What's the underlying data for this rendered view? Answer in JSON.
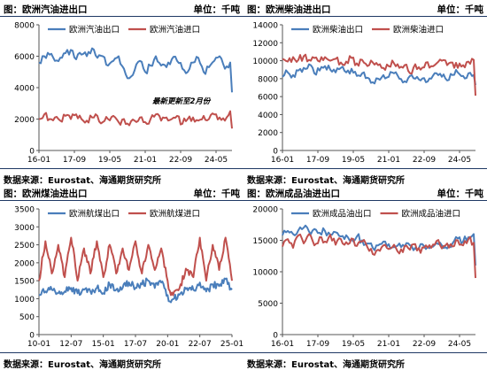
{
  "colors": {
    "blue": "#4a7ebb",
    "red": "#c0504d",
    "axis": "#555555",
    "rule": "#1f3864"
  },
  "panels": [
    {
      "title": "图：欧洲汽油进出口",
      "unit": "单位：千吨",
      "source": "数据来源：Eurostat、海通期货研究所",
      "note": "最新更新至2月份"
    },
    {
      "title": "图：欧洲柴油进出口",
      "unit": "单位：千吨",
      "source": "数据来源：Eurostat、海通期货研究所"
    },
    {
      "title": "图：欧洲煤油进出口",
      "unit": "单位：千吨",
      "source": "数据来源：Eurostat、海通期货研究所"
    },
    {
      "title": "图：欧洲成品油进出口",
      "unit": "单位：千吨",
      "source": "数据来源：Eurostat、海通期货研究所"
    }
  ],
  "chart_data": [
    {
      "type": "line",
      "legend_position": "top",
      "grid": false,
      "ylim": [
        0,
        8000
      ],
      "yticks": [
        "0",
        "2000",
        "4000",
        "6000",
        "8000"
      ],
      "x_range": [
        "2016-01",
        "2025-02"
      ],
      "xticks": [
        "16-01",
        "17-09",
        "19-05",
        "21-01",
        "22-09",
        "24-05"
      ],
      "series": [
        {
          "name": "欧洲汽油出口",
          "color": "#4a7ebb",
          "x": [
            "2016-01",
            "2016-04",
            "2016-07",
            "2016-10",
            "2017-01",
            "2017-04",
            "2017-07",
            "2017-10",
            "2018-01",
            "2018-04",
            "2018-07",
            "2018-10",
            "2019-01",
            "2019-04",
            "2019-07",
            "2019-10",
            "2020-01",
            "2020-04",
            "2020-07",
            "2020-10",
            "2021-01",
            "2021-04",
            "2021-07",
            "2021-10",
            "2022-01",
            "2022-04",
            "2022-07",
            "2022-10",
            "2023-01",
            "2023-04",
            "2023-07",
            "2023-10",
            "2024-01",
            "2024-04",
            "2024-07",
            "2024-10",
            "2025-01",
            "2025-02"
          ],
          "y": [
            5600,
            6000,
            6100,
            5700,
            5900,
            6200,
            6400,
            5800,
            6100,
            6000,
            6500,
            5900,
            6000,
            5400,
            5700,
            6000,
            5200,
            4600,
            5100,
            5700,
            5000,
            5400,
            6000,
            5400,
            5300,
            5800,
            5700,
            5200,
            5000,
            5600,
            5900,
            5000,
            5300,
            5700,
            6000,
            5200,
            5600,
            3700
          ]
        },
        {
          "name": "欧洲汽油进口",
          "color": "#c0504d",
          "x": [
            "2016-01",
            "2016-04",
            "2016-07",
            "2016-10",
            "2017-01",
            "2017-04",
            "2017-07",
            "2017-10",
            "2018-01",
            "2018-04",
            "2018-07",
            "2018-10",
            "2019-01",
            "2019-04",
            "2019-07",
            "2019-10",
            "2020-01",
            "2020-04",
            "2020-07",
            "2020-10",
            "2021-01",
            "2021-04",
            "2021-07",
            "2021-10",
            "2022-01",
            "2022-04",
            "2022-07",
            "2022-10",
            "2023-01",
            "2023-04",
            "2023-07",
            "2023-10",
            "2024-01",
            "2024-04",
            "2024-07",
            "2024-10",
            "2025-01",
            "2025-02"
          ],
          "y": [
            2000,
            2300,
            2000,
            2100,
            1900,
            2200,
            2000,
            2300,
            2000,
            1900,
            2100,
            2200,
            1800,
            2000,
            2200,
            1800,
            2000,
            1600,
            1900,
            2100,
            1800,
            2000,
            2300,
            1900,
            2100,
            2000,
            2200,
            1700,
            2000,
            2100,
            1900,
            2200,
            2000,
            2300,
            2100,
            1900,
            2500,
            1400
          ]
        }
      ]
    },
    {
      "type": "line",
      "legend_position": "top",
      "grid": false,
      "ylim": [
        0,
        14000
      ],
      "yticks": [
        "0",
        "2000",
        "4000",
        "6000",
        "8000",
        "10000",
        "12000",
        "14000"
      ],
      "x_range": [
        "2016-01",
        "2025-02"
      ],
      "xticks": [
        "16-01",
        "17-09",
        "19-05",
        "21-01",
        "22-09",
        "24-05"
      ],
      "series": [
        {
          "name": "欧洲柴油出口",
          "color": "#4a7ebb",
          "x": [
            "2016-01",
            "2016-04",
            "2016-07",
            "2016-10",
            "2017-01",
            "2017-04",
            "2017-07",
            "2017-10",
            "2018-01",
            "2018-04",
            "2018-07",
            "2018-10",
            "2019-01",
            "2019-04",
            "2019-07",
            "2019-10",
            "2020-01",
            "2020-04",
            "2020-07",
            "2020-10",
            "2021-01",
            "2021-04",
            "2021-07",
            "2021-10",
            "2022-01",
            "2022-04",
            "2022-07",
            "2022-10",
            "2023-01",
            "2023-04",
            "2023-07",
            "2023-10",
            "2024-01",
            "2024-04",
            "2024-07",
            "2024-10",
            "2025-01",
            "2025-02"
          ],
          "y": [
            8200,
            8700,
            8400,
            8900,
            9200,
            9600,
            8600,
            8900,
            9400,
            9000,
            8700,
            9200,
            8700,
            9100,
            8300,
            8600,
            8100,
            7600,
            8000,
            8400,
            8200,
            8600,
            8000,
            7700,
            8300,
            8000,
            7800,
            7600,
            8000,
            8600,
            8200,
            7800,
            8400,
            8700,
            8300,
            8600,
            8400,
            7300
          ]
        },
        {
          "name": "欧洲柴油进口",
          "color": "#c0504d",
          "x": [
            "2016-01",
            "2016-04",
            "2016-07",
            "2016-10",
            "2017-01",
            "2017-04",
            "2017-07",
            "2017-10",
            "2018-01",
            "2018-04",
            "2018-07",
            "2018-10",
            "2019-01",
            "2019-04",
            "2019-07",
            "2019-10",
            "2020-01",
            "2020-04",
            "2020-07",
            "2020-10",
            "2021-01",
            "2021-04",
            "2021-07",
            "2021-10",
            "2022-01",
            "2022-04",
            "2022-07",
            "2022-10",
            "2023-01",
            "2023-04",
            "2023-07",
            "2023-10",
            "2024-01",
            "2024-04",
            "2024-07",
            "2024-10",
            "2025-01",
            "2025-02"
          ],
          "y": [
            10200,
            9900,
            10400,
            10100,
            10500,
            10100,
            10300,
            9900,
            10400,
            10000,
            10200,
            9800,
            9900,
            10300,
            9700,
            10100,
            9400,
            9800,
            9500,
            9200,
            9400,
            9700,
            9200,
            9500,
            8600,
            9600,
            9000,
            9800,
            9400,
            9700,
            10000,
            9500,
            9800,
            9200,
            9500,
            9900,
            10100,
            6100
          ]
        }
      ]
    },
    {
      "type": "line",
      "legend_position": "top",
      "grid": false,
      "ylim": [
        0,
        3500
      ],
      "yticks": [
        "0",
        "500",
        "1000",
        "1500",
        "2000",
        "2500",
        "3000",
        "3500"
      ],
      "x_range": [
        "2010-01",
        "2025-01"
      ],
      "xticks": [
        "10-01",
        "12-07",
        "15-01",
        "17-07",
        "20-01",
        "22-07",
        "25-01"
      ],
      "series": [
        {
          "name": "欧洲航煤出口",
          "color": "#4a7ebb",
          "x": [
            "2010-01",
            "2010-07",
            "2011-01",
            "2011-07",
            "2012-01",
            "2012-07",
            "2013-01",
            "2013-07",
            "2014-01",
            "2014-07",
            "2015-01",
            "2015-07",
            "2016-01",
            "2016-07",
            "2017-01",
            "2017-07",
            "2018-01",
            "2018-07",
            "2019-01",
            "2019-07",
            "2020-01",
            "2020-04",
            "2020-07",
            "2021-01",
            "2021-07",
            "2022-01",
            "2022-07",
            "2023-01",
            "2023-07",
            "2024-01",
            "2024-07",
            "2025-01"
          ],
          "y": [
            1100,
            1200,
            1250,
            1150,
            1200,
            1300,
            1150,
            1250,
            1200,
            1300,
            1150,
            1400,
            1250,
            1300,
            1450,
            1300,
            1400,
            1500,
            1300,
            1450,
            1100,
            900,
            1000,
            1150,
            1300,
            1250,
            1450,
            1200,
            1400,
            1350,
            1550,
            1250
          ]
        },
        {
          "name": "欧洲航煤进口",
          "color": "#c0504d",
          "x": [
            "2010-01",
            "2010-07",
            "2011-01",
            "2011-07",
            "2012-01",
            "2012-07",
            "2013-01",
            "2013-07",
            "2014-01",
            "2014-07",
            "2015-01",
            "2015-07",
            "2016-01",
            "2016-07",
            "2017-01",
            "2017-07",
            "2018-01",
            "2018-07",
            "2019-01",
            "2019-07",
            "2020-01",
            "2020-04",
            "2020-07",
            "2021-01",
            "2021-07",
            "2022-01",
            "2022-07",
            "2023-01",
            "2023-07",
            "2024-01",
            "2024-07",
            "2025-01"
          ],
          "y": [
            1500,
            2600,
            1700,
            2500,
            1600,
            2700,
            1500,
            2400,
            1700,
            2600,
            1600,
            2500,
            1700,
            2400,
            1800,
            2600,
            1700,
            2500,
            1800,
            2400,
            1500,
            1100,
            1200,
            1400,
            1800,
            1600,
            2700,
            1500,
            2500,
            1800,
            2700,
            1500
          ]
        }
      ]
    },
    {
      "type": "line",
      "legend_position": "top",
      "grid": false,
      "ylim": [
        0,
        20000
      ],
      "yticks": [
        "0",
        "5000",
        "10000",
        "15000",
        "20000"
      ],
      "x_range": [
        "2016-01",
        "2025-02"
      ],
      "xticks": [
        "16-01",
        "17-09",
        "19-05",
        "21-01",
        "22-09",
        "24-05"
      ],
      "series": [
        {
          "name": "欧洲成品油出口",
          "color": "#4a7ebb",
          "x": [
            "2016-01",
            "2016-04",
            "2016-07",
            "2016-10",
            "2017-01",
            "2017-04",
            "2017-07",
            "2017-10",
            "2018-01",
            "2018-04",
            "2018-07",
            "2018-10",
            "2019-01",
            "2019-04",
            "2019-07",
            "2019-10",
            "2020-01",
            "2020-04",
            "2020-07",
            "2020-10",
            "2021-01",
            "2021-04",
            "2021-07",
            "2021-10",
            "2022-01",
            "2022-04",
            "2022-07",
            "2022-10",
            "2023-01",
            "2023-04",
            "2023-07",
            "2023-10",
            "2024-01",
            "2024-04",
            "2024-07",
            "2024-10",
            "2025-01",
            "2025-02"
          ],
          "y": [
            15800,
            16500,
            16000,
            16600,
            17000,
            16400,
            16800,
            16200,
            16500,
            15900,
            16300,
            15600,
            15800,
            15200,
            15600,
            15000,
            14500,
            13800,
            14200,
            14800,
            14400,
            13900,
            14500,
            14000,
            14200,
            13800,
            14400,
            13600,
            14000,
            14600,
            14200,
            13700,
            14500,
            15300,
            14800,
            15500,
            16000,
            11000
          ]
        },
        {
          "name": "欧洲成品油进口",
          "color": "#c0504d",
          "x": [
            "2016-01",
            "2016-04",
            "2016-07",
            "2016-10",
            "2017-01",
            "2017-04",
            "2017-07",
            "2017-10",
            "2018-01",
            "2018-04",
            "2018-07",
            "2018-10",
            "2019-01",
            "2019-04",
            "2019-07",
            "2019-10",
            "2020-01",
            "2020-04",
            "2020-07",
            "2020-10",
            "2021-01",
            "2021-04",
            "2021-07",
            "2021-10",
            "2022-01",
            "2022-04",
            "2022-07",
            "2022-10",
            "2023-01",
            "2023-04",
            "2023-07",
            "2023-10",
            "2024-01",
            "2024-04",
            "2024-07",
            "2024-10",
            "2025-01",
            "2025-02"
          ],
          "y": [
            14000,
            15200,
            13800,
            15800,
            14500,
            16000,
            14200,
            15500,
            14800,
            15900,
            14300,
            15200,
            14700,
            15300,
            14100,
            14800,
            13900,
            12800,
            13500,
            14200,
            13600,
            14300,
            12900,
            14100,
            13500,
            14400,
            13000,
            14200,
            13800,
            14900,
            13700,
            14500,
            14000,
            15000,
            14200,
            15200,
            14600,
            9000
          ]
        }
      ]
    }
  ]
}
